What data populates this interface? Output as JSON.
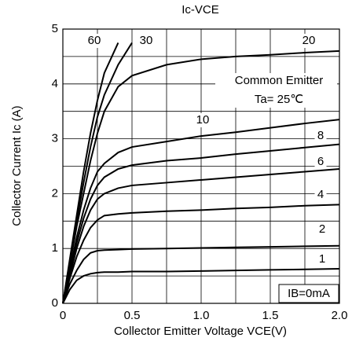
{
  "chart_data": {
    "type": "line",
    "title": "Ic-VCE",
    "x_label": "Collector Emitter Voltage VCE(V)",
    "y_label": "Collector Current Ic (A)",
    "annotations": [
      "Common Emitter",
      "Ta= 25℃",
      "IB=0mA"
    ],
    "x": [
      0,
      0.05,
      0.1,
      0.15,
      0.2,
      0.25,
      0.3,
      0.4,
      0.5,
      0.75,
      1.0,
      1.25,
      1.5,
      1.75,
      2.0
    ],
    "series": [
      {
        "name": "1",
        "color": "#000000",
        "values": [
          0,
          0.25,
          0.42,
          0.5,
          0.54,
          0.56,
          0.57,
          0.57,
          0.58,
          0.58,
          0.59,
          0.6,
          0.61,
          0.62,
          0.63
        ]
      },
      {
        "name": "2",
        "color": "#000000",
        "values": [
          0,
          0.35,
          0.6,
          0.8,
          0.92,
          0.96,
          0.97,
          0.98,
          0.99,
          1.0,
          1.01,
          1.02,
          1.03,
          1.04,
          1.05
        ]
      },
      {
        "name": "4",
        "color": "#000000",
        "values": [
          0,
          0.45,
          0.85,
          1.15,
          1.38,
          1.52,
          1.6,
          1.63,
          1.65,
          1.68,
          1.7,
          1.73,
          1.75,
          1.78,
          1.8
        ]
      },
      {
        "name": "6",
        "color": "#000000",
        "values": [
          0,
          0.5,
          1.0,
          1.4,
          1.7,
          1.9,
          2.0,
          2.1,
          2.15,
          2.2,
          2.25,
          2.3,
          2.35,
          2.4,
          2.45
        ]
      },
      {
        "name": "8",
        "color": "#000000",
        "values": [
          0,
          0.55,
          1.1,
          1.55,
          1.9,
          2.15,
          2.3,
          2.45,
          2.52,
          2.6,
          2.65,
          2.72,
          2.78,
          2.84,
          2.9
        ]
      },
      {
        "name": "10",
        "color": "#000000",
        "values": [
          0,
          0.6,
          1.2,
          1.7,
          2.1,
          2.4,
          2.55,
          2.75,
          2.85,
          2.95,
          3.05,
          3.12,
          3.2,
          3.28,
          3.35
        ]
      },
      {
        "name": "20",
        "color": "#000000",
        "values": [
          0,
          0.7,
          1.4,
          2.0,
          2.6,
          3.1,
          3.5,
          3.95,
          4.15,
          4.35,
          4.45,
          4.5,
          4.53,
          4.57,
          4.6
        ]
      },
      {
        "name": "30",
        "color": "#000000",
        "values": [
          0,
          0.75,
          1.5,
          2.2,
          2.85,
          3.4,
          3.8,
          4.35,
          4.75,
          null,
          null,
          null,
          null,
          null,
          null
        ]
      },
      {
        "name": "60",
        "color": "#000000",
        "values": [
          0,
          0.8,
          1.6,
          2.4,
          3.1,
          3.7,
          4.2,
          4.75,
          null,
          null,
          null,
          null,
          null,
          null,
          null
        ]
      }
    ],
    "xlim": [
      0,
      2.0
    ],
    "xticks": [
      0,
      0.5,
      {
        "value": 1.0,
        "label": "1.0"
      },
      1.5,
      {
        "value": 2.0,
        "label": "2.0"
      }
    ],
    "ylim": [
      0,
      5
    ],
    "yticks": [
      0,
      1,
      2,
      3,
      4,
      5
    ],
    "grid": true
  }
}
